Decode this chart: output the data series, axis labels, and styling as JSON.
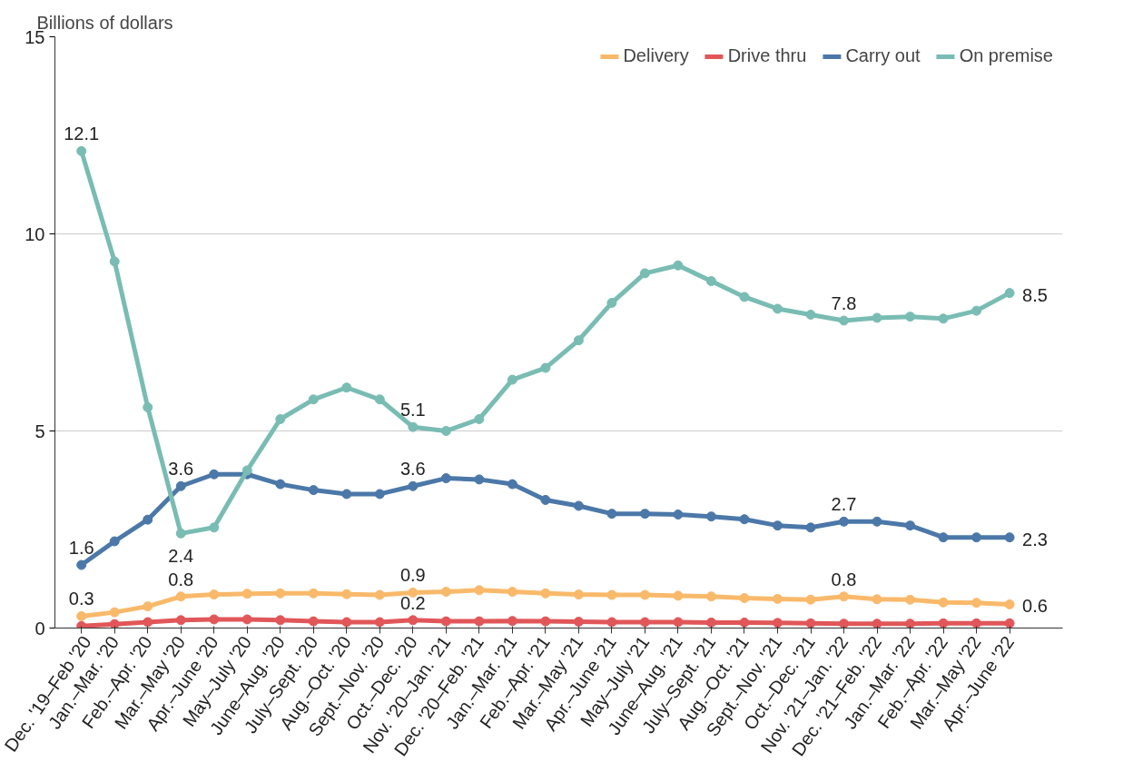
{
  "chart_data": {
    "type": "line",
    "ylabel": "Billions of dollars",
    "categories": [
      "Dec. '19–Feb '20",
      "Jan.–Mar. '20",
      "Feb.–Apr. '20",
      "Mar.–May '20",
      "Apr.–June '20",
      "May–July '20",
      "June–Aug. '20",
      "July–Sept. '20",
      "Aug.–Oct. '20",
      "Sept.–Nov. '20",
      "Oct.–Dec. '20",
      "Nov. '20–Jan. '21",
      "Dec. '20–Feb. '21",
      "Jan.–Mar. '21",
      "Feb.–Apr. '21",
      "Mar.–May '21",
      "Apr.–June '21",
      "May–July '21",
      "June–Aug. '21",
      "July–Sept. '21",
      "Aug.–Oct. '21",
      "Sept.–Nov. '21",
      "Oct.–Dec. '21",
      "Nov. '21–Jan. '22",
      "Dec. '21–Feb. '22",
      "Jan.–Mar. '22",
      "Feb.–Apr. '22",
      "Mar.–May '22",
      "Apr.–June '22"
    ],
    "series": [
      {
        "name": "Delivery",
        "color": "#f9b96a",
        "values": [
          0.3,
          0.4,
          0.55,
          0.8,
          0.85,
          0.87,
          0.88,
          0.88,
          0.86,
          0.84,
          0.9,
          0.92,
          0.96,
          0.92,
          0.88,
          0.85,
          0.84,
          0.84,
          0.82,
          0.8,
          0.76,
          0.74,
          0.72,
          0.8,
          0.73,
          0.72,
          0.65,
          0.64,
          0.6
        ],
        "value_labels": [
          "0.3",
          null,
          null,
          "0.8",
          null,
          null,
          null,
          null,
          null,
          null,
          "0.9",
          null,
          null,
          null,
          null,
          null,
          null,
          null,
          null,
          null,
          null,
          null,
          null,
          "0.8",
          null,
          null,
          null,
          null,
          "0.6"
        ]
      },
      {
        "name": "Drive thru",
        "color": "#e15759",
        "values": [
          0.05,
          0.1,
          0.15,
          0.2,
          0.22,
          0.22,
          0.2,
          0.17,
          0.15,
          0.15,
          0.2,
          0.17,
          0.17,
          0.18,
          0.17,
          0.16,
          0.15,
          0.15,
          0.15,
          0.14,
          0.14,
          0.13,
          0.12,
          0.11,
          0.11,
          0.11,
          0.12,
          0.12,
          0.12
        ],
        "value_labels": [
          null,
          null,
          null,
          null,
          null,
          null,
          null,
          null,
          null,
          null,
          "0.2",
          null,
          null,
          null,
          null,
          null,
          null,
          null,
          null,
          null,
          null,
          null,
          null,
          null,
          null,
          null,
          null,
          null,
          null
        ]
      },
      {
        "name": "Carry out",
        "color": "#4b78a8",
        "values": [
          1.6,
          2.2,
          2.75,
          3.6,
          3.9,
          3.9,
          3.65,
          3.5,
          3.4,
          3.4,
          3.6,
          3.8,
          3.77,
          3.65,
          3.25,
          3.1,
          2.9,
          2.9,
          2.88,
          2.83,
          2.76,
          2.6,
          2.55,
          2.7,
          2.7,
          2.6,
          2.3,
          2.3,
          2.3
        ],
        "value_labels": [
          "1.6",
          null,
          null,
          "3.6",
          null,
          null,
          null,
          null,
          null,
          null,
          "3.6",
          null,
          null,
          null,
          null,
          null,
          null,
          null,
          null,
          null,
          null,
          null,
          null,
          "2.7",
          null,
          null,
          null,
          null,
          "2.3"
        ]
      },
      {
        "name": "On premise",
        "color": "#79bcb3",
        "values": [
          12.1,
          9.3,
          5.6,
          2.4,
          2.55,
          4.0,
          5.3,
          5.8,
          6.1,
          5.8,
          5.1,
          5.0,
          5.3,
          6.3,
          6.6,
          7.3,
          8.25,
          9.0,
          9.2,
          8.8,
          8.4,
          8.1,
          7.95,
          7.8,
          7.87,
          7.9,
          7.85,
          8.05,
          8.5
        ],
        "value_labels": [
          "12.1",
          null,
          null,
          "2.4",
          null,
          null,
          null,
          null,
          null,
          null,
          "5.1",
          null,
          null,
          null,
          null,
          null,
          null,
          null,
          null,
          null,
          null,
          null,
          null,
          "7.8",
          null,
          null,
          null,
          null,
          "8.5"
        ]
      }
    ],
    "ylim": [
      0,
      15
    ],
    "yticks": [
      0,
      5,
      10,
      15
    ],
    "grid": "y",
    "legend": "top right",
    "marker": "circle",
    "line_style": "solid"
  }
}
